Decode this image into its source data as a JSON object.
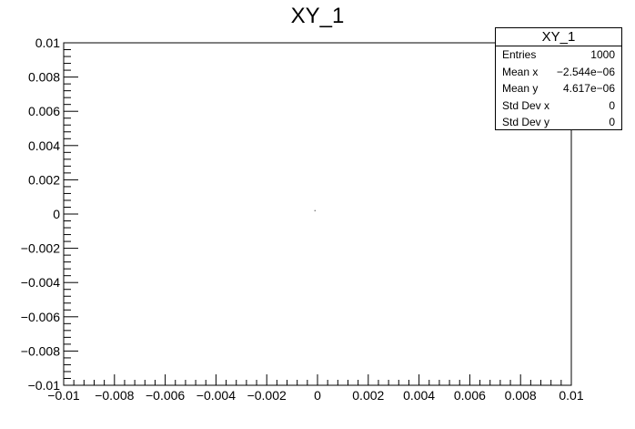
{
  "chart_data": {
    "type": "scatter",
    "title": "XY_1",
    "xlabel": "",
    "ylabel": "",
    "xlim": [
      -0.01,
      0.01
    ],
    "ylim": [
      -0.01,
      0.01
    ],
    "x_ticks": [
      -0.01,
      -0.008,
      -0.006,
      -0.004,
      -0.002,
      0,
      0.002,
      0.004,
      0.006,
      0.008,
      0.01
    ],
    "x_tick_labels": [
      "−0.01",
      "−0.008",
      "−0.006",
      "−0.004",
      "−0.002",
      "0",
      "0.002",
      "0.004",
      "0.006",
      "0.008",
      "0.01"
    ],
    "y_ticks": [
      -0.01,
      -0.008,
      -0.006,
      -0.004,
      -0.002,
      0,
      0.002,
      0.004,
      0.006,
      0.008,
      0.01
    ],
    "y_tick_labels": [
      "−0.01",
      "−0.008",
      "−0.006",
      "−0.004",
      "−0.002",
      "0",
      "0.002",
      "0.004",
      "0.006",
      "0.008",
      "0.01"
    ],
    "grid": false,
    "points": [
      {
        "x": -0.0001,
        "y": 0.0002
      }
    ],
    "stats_box": {
      "title": "XY_1",
      "placement": "top-right",
      "rows": [
        {
          "label": "Entries",
          "value": "1000"
        },
        {
          "label": "Mean x",
          "value": "−2.544e−06"
        },
        {
          "label": "Mean y",
          "value": "4.617e−06"
        },
        {
          "label": "Std Dev x",
          "value": "0"
        },
        {
          "label": "Std Dev y",
          "value": "0"
        }
      ]
    },
    "colors": {
      "marker": "#000000",
      "axis": "#000000",
      "background": "#ffffff"
    }
  }
}
